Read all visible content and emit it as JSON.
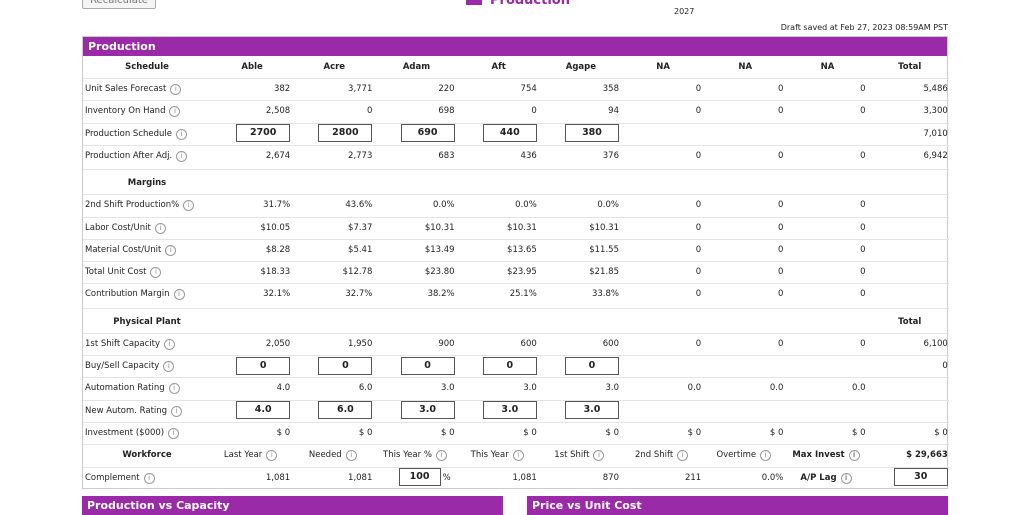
{
  "toolbar": {
    "recalculate": "Recalculate",
    "title": "Production",
    "year": "2027",
    "draft": "Draft saved at Feb 27, 2023 08:59AM PST"
  },
  "panel": {
    "title": "Production",
    "sections": [
      {
        "heading": "Schedule",
        "columns": [
          "Able",
          "Acre",
          "Adam",
          "Aft",
          "Agape",
          "NA",
          "NA",
          "NA",
          "Total"
        ],
        "rows": [
          {
            "label": "Unit Sales Forecast",
            "cells": [
              "382",
              "3,771",
              "220",
              "754",
              "358",
              "0",
              "0",
              "0",
              "5,486"
            ]
          },
          {
            "label": "Inventory On Hand",
            "cells": [
              "2,508",
              "0",
              "698",
              "0",
              "94",
              "0",
              "0",
              "0",
              "3,300"
            ]
          },
          {
            "label": "Production Schedule",
            "cells": [
              {
                "input": "2700"
              },
              {
                "input": "2800"
              },
              {
                "input": "690"
              },
              {
                "input": "440"
              },
              {
                "input": "380"
              },
              null,
              null,
              null,
              "7,010"
            ]
          },
          {
            "label": "Production After Adj.",
            "cells": [
              "2,674",
              "2,773",
              "683",
              "436",
              "376",
              "0",
              "0",
              "0",
              "6,942"
            ]
          }
        ]
      },
      {
        "heading": "Margins",
        "rows": [
          {
            "label": "2nd Shift Production%",
            "cells": [
              "31.7%",
              "43.6%",
              "0.0%",
              "0.0%",
              "0.0%",
              "0",
              "0",
              "0"
            ]
          },
          {
            "label": "Labor Cost/Unit",
            "cells": [
              "$10.05",
              "$7.37",
              "$10.31",
              "$10.31",
              "$10.31",
              "0",
              "0",
              "0"
            ]
          },
          {
            "label": "Material Cost/Unit",
            "cells": [
              "$8.28",
              "$5.41",
              "$13.49",
              "$13.65",
              "$11.55",
              "0",
              "0",
              "0"
            ]
          },
          {
            "label": "Total Unit Cost",
            "cells": [
              "$18.33",
              "$12.78",
              "$23.80",
              "$23.95",
              "$21.85",
              "0",
              "0",
              "0"
            ]
          },
          {
            "label": "Contribution Margin",
            "cells": [
              "32.1%",
              "32.7%",
              "38.2%",
              "25.1%",
              "33.8%",
              "0",
              "0",
              "0"
            ]
          }
        ]
      },
      {
        "heading": "Physical Plant",
        "columns": [
          null,
          null,
          null,
          null,
          null,
          null,
          null,
          null,
          "Total"
        ],
        "rows": [
          {
            "label": "1st Shift Capacity",
            "cells": [
              "2,050",
              "1,950",
              "900",
              "600",
              "600",
              "0",
              "0",
              "0",
              "6,100"
            ]
          },
          {
            "label": "Buy/Sell Capacity",
            "cells": [
              {
                "input": "0"
              },
              {
                "input": "0"
              },
              {
                "input": "0"
              },
              {
                "input": "0"
              },
              {
                "input": "0"
              },
              null,
              null,
              null,
              "0"
            ]
          },
          {
            "label": "Automation Rating",
            "cells": [
              "4.0",
              "6.0",
              "3.0",
              "3.0",
              "3.0",
              "0.0",
              "0.0",
              "0.0"
            ]
          },
          {
            "label": "New Autom. Rating",
            "cells": [
              {
                "input": "4.0"
              },
              {
                "input": "6.0"
              },
              {
                "input": "3.0"
              },
              {
                "input": "3.0"
              },
              {
                "input": "3.0"
              }
            ]
          },
          {
            "label": "Investment ($000)",
            "cells": [
              "$ 0",
              "$ 0",
              "$ 0",
              "$ 0",
              "$ 0",
              "$ 0",
              "$ 0",
              "$ 0",
              "$ 0"
            ]
          },
          {
            "title": "Workforce",
            "cells": [
              {
                "label": "Last Year"
              },
              {
                "label": "Needed"
              },
              {
                "label": "This Year %"
              },
              {
                "label": "This Year"
              },
              {
                "label": "1st Shift"
              },
              {
                "label": "2nd Shift"
              },
              {
                "label": "Overtime"
              },
              {
                "label": "Max Invest",
                "strong": true
              },
              {
                "text": "$ 29,663",
                "strong": true
              }
            ]
          },
          {
            "label": "Complement",
            "cells": [
              "1,081",
              "1,081",
              {
                "input": "100",
                "unit": "%"
              },
              "1,081",
              "870",
              "211",
              "0.0%",
              {
                "label": "A/P Lag",
                "strong": true
              },
              {
                "input": "30"
              }
            ]
          }
        ]
      }
    ]
  },
  "charts": [
    "Production vs Capacity",
    "Price vs Unit Cost"
  ]
}
